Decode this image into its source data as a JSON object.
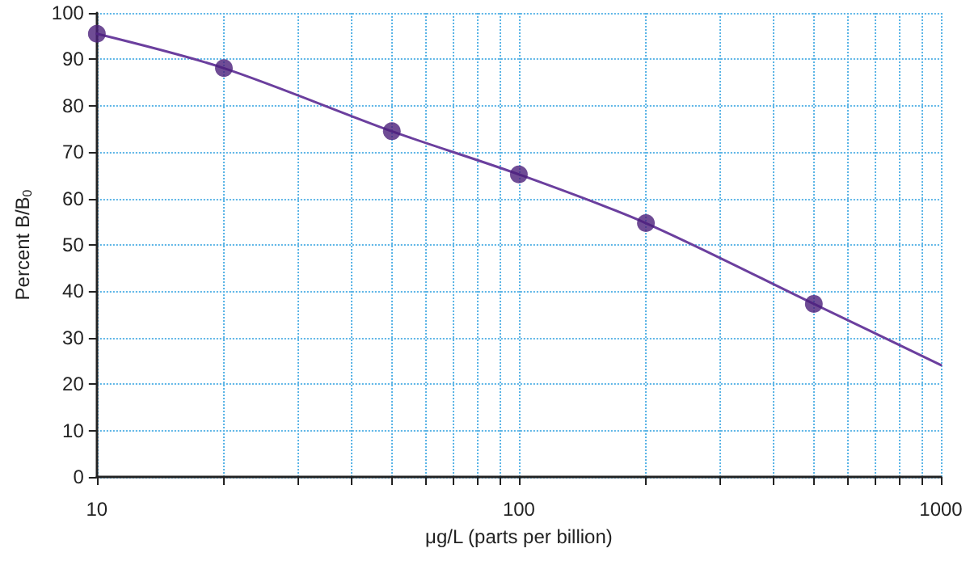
{
  "chart_data": {
    "type": "scatter",
    "xlabel": "μg/L (parts per billion)",
    "ylabel": "Percent B/B$_{0}$",
    "log": "x",
    "grid": true,
    "xlim": [
      10,
      1000
    ],
    "xticks": [
      10,
      {
        "value": 20,
        "label": null
      },
      {
        "value": 30,
        "label": null
      },
      {
        "value": 40,
        "label": null
      },
      {
        "value": 50,
        "label": null
      },
      {
        "value": 60,
        "label": null
      },
      {
        "value": 70,
        "label": null
      },
      {
        "value": 80,
        "label": null
      },
      {
        "value": 90,
        "label": null
      },
      100,
      {
        "value": 200,
        "label": null
      },
      {
        "value": 300,
        "label": null
      },
      {
        "value": 400,
        "label": null
      },
      {
        "value": 500,
        "label": null
      },
      {
        "value": 600,
        "label": null
      },
      {
        "value": 700,
        "label": null
      },
      {
        "value": 800,
        "label": null
      },
      {
        "value": 900,
        "label": null
      },
      1000
    ],
    "ylim": [
      0,
      100
    ],
    "yticks": [
      0,
      10,
      20,
      30,
      40,
      50,
      60,
      70,
      80,
      90,
      100
    ],
    "series": [
      {
        "type": "line",
        "marker": "none",
        "line_style": "solid",
        "color": "#6b3f9e",
        "x": [
          10,
          20,
          50,
          100,
          200,
          500,
          1000
        ],
        "values": [
          95.5,
          88.1,
          74.5,
          65.2,
          54.7,
          37.3,
          24.1
        ]
      },
      {
        "marker": "circle",
        "color": "#4b1f7a",
        "x": [
          10,
          20,
          50,
          100,
          200,
          500
        ],
        "values": [
          95.5,
          88.1,
          74.5,
          65.2,
          54.7,
          37.3
        ]
      }
    ]
  }
}
